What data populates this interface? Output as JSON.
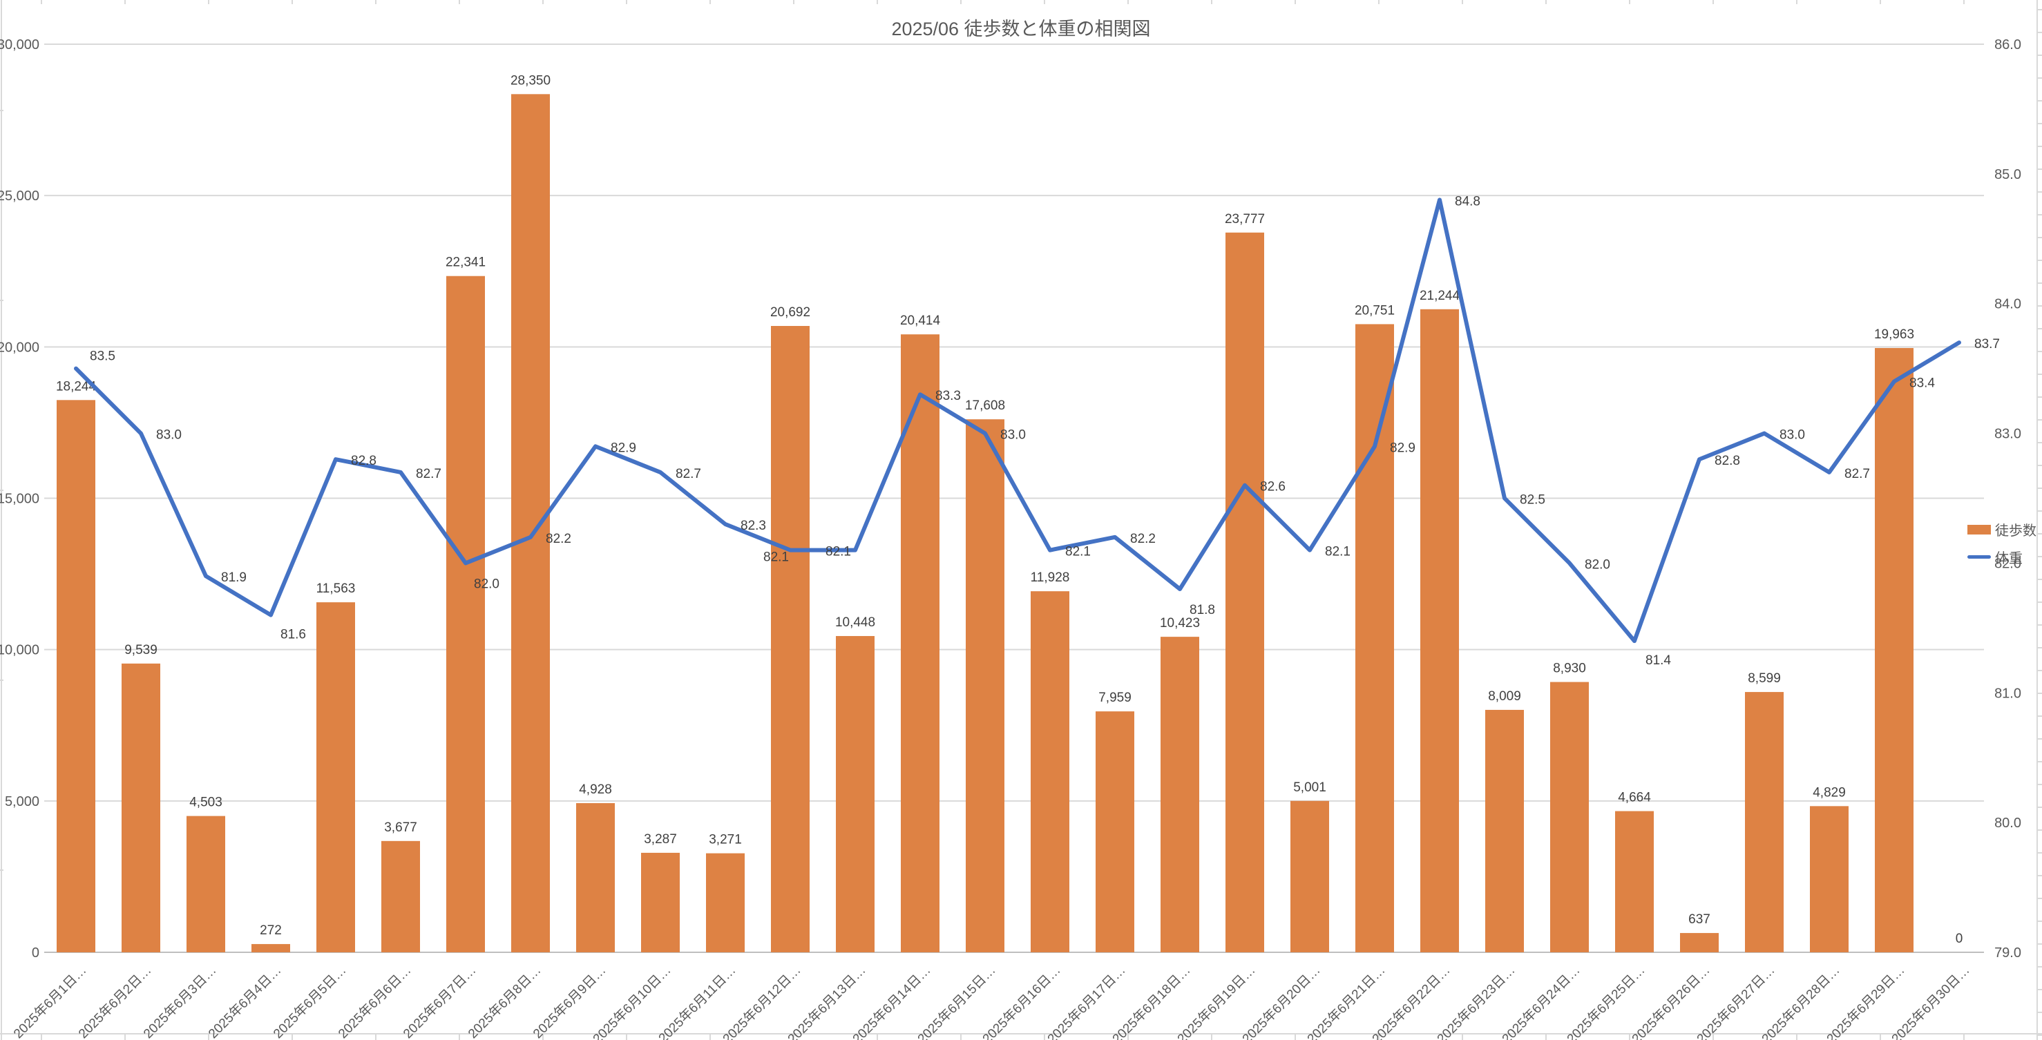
{
  "title": "2025/06 徒歩数と体重の相関図",
  "legend": {
    "items": [
      {
        "label": "徒歩数",
        "swatch": "bar-swatch-icon"
      },
      {
        "label": "体重",
        "swatch": "line-swatch-icon"
      }
    ]
  },
  "colors": {
    "bar": "#DE8244",
    "line": "#4472C4",
    "title_text": "#595959",
    "axis_text": "#595959",
    "data_label_text": "#404040",
    "gridline": "#D9D9D9",
    "axis_line": "#BFBFBF",
    "sheet_line": "#D9D9D9"
  },
  "chart_data": {
    "type": "combo-bar-line",
    "title": "2025/06 徒歩数と体重の相関図",
    "grid": true,
    "legend_position": "right",
    "categories": [
      "2025年6月1日…",
      "2025年6月2日…",
      "2025年6月3日…",
      "2025年6月4日…",
      "2025年6月5日…",
      "2025年6月6日…",
      "2025年6月7日…",
      "2025年6月8日…",
      "2025年6月9日…",
      "2025年6月10日…",
      "2025年6月11日…",
      "2025年6月12日…",
      "2025年6月13日…",
      "2025年6月14日…",
      "2025年6月15日…",
      "2025年6月16日…",
      "2025年6月17日…",
      "2025年6月18日…",
      "2025年6月19日…",
      "2025年6月20日…",
      "2025年6月21日…",
      "2025年6月22日…",
      "2025年6月23日…",
      "2025年6月24日…",
      "2025年6月25日…",
      "2025年6月26日…",
      "2025年6月27日…",
      "2025年6月28日…",
      "2025年6月29日…",
      "2025年6月30日…"
    ],
    "series": [
      {
        "name": "徒歩数",
        "type": "bar",
        "axis": "left",
        "color": "#DE8244",
        "data_labels": true,
        "values": [
          18244,
          9539,
          4503,
          272,
          11563,
          3677,
          22341,
          28350,
          4928,
          3287,
          3271,
          20692,
          10448,
          20414,
          17608,
          11928,
          7959,
          10423,
          23777,
          5001,
          20751,
          21244,
          8009,
          8930,
          4664,
          637,
          8599,
          4829,
          19963,
          0
        ]
      },
      {
        "name": "体重",
        "type": "line",
        "axis": "right",
        "color": "#4472C4",
        "data_labels": true,
        "values": [
          83.5,
          83.0,
          81.9,
          81.6,
          82.8,
          82.7,
          82.0,
          82.2,
          82.9,
          82.7,
          82.3,
          82.1,
          82.1,
          83.3,
          83.0,
          82.1,
          82.2,
          81.8,
          82.6,
          82.1,
          82.9,
          84.8,
          82.5,
          82.0,
          81.4,
          82.8,
          83.0,
          82.7,
          83.4,
          83.7
        ]
      }
    ],
    "left_axis": {
      "min": 0,
      "max": 30000,
      "step": 5000,
      "tick_labels": [
        "30,000",
        "25,000",
        "20,000",
        "15,000",
        "10,000",
        "5,000",
        "0"
      ]
    },
    "right_axis": {
      "min": 79.0,
      "max": 86.0,
      "step": 1.0,
      "tick_labels": [
        "86.0",
        "85.0",
        "84.0",
        "83.0",
        "82.0",
        "81.0",
        "80.0",
        "79.0"
      ]
    }
  }
}
